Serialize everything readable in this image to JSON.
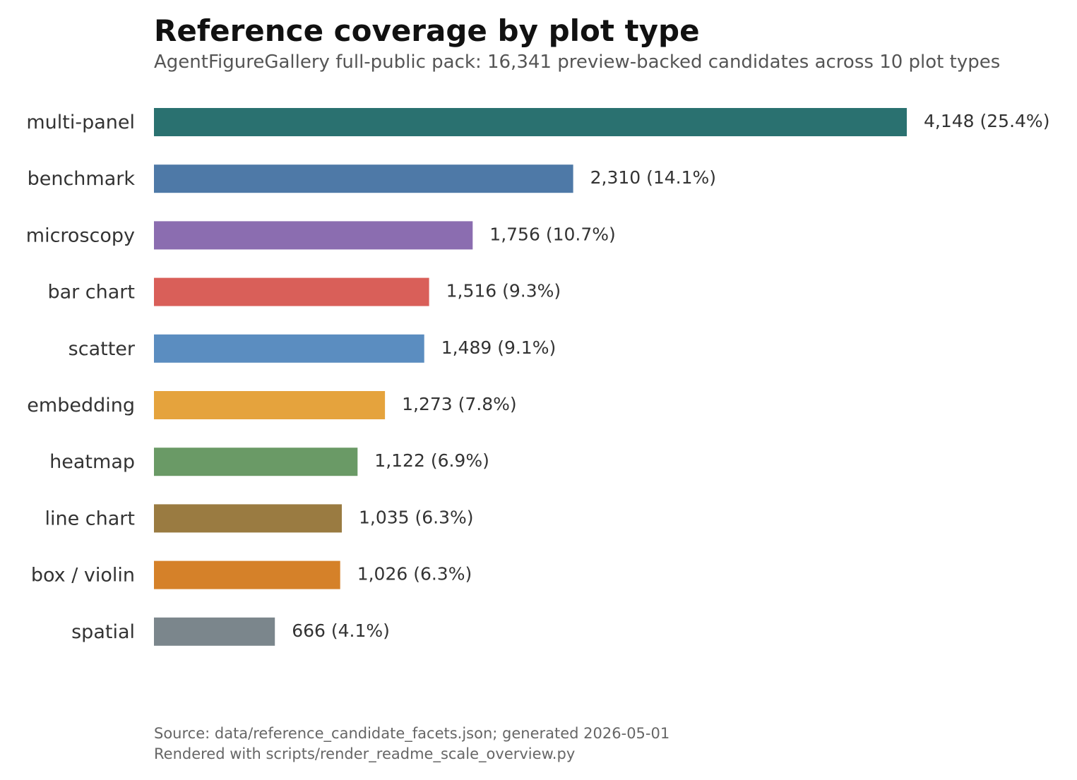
{
  "chart_data": {
    "type": "bar",
    "orientation": "horizontal",
    "title": "Reference coverage by plot type",
    "subtitle": "AgentFigureGallery full-public pack: 16,341 preview-backed candidates across 10 plot types",
    "categories": [
      "multi-panel",
      "benchmark",
      "microscopy",
      "bar chart",
      "scatter",
      "embedding",
      "heatmap",
      "line chart",
      "box / violin",
      "spatial"
    ],
    "values": [
      4148,
      2310,
      1756,
      1516,
      1489,
      1273,
      1122,
      1035,
      1026,
      666
    ],
    "data_labels": [
      "4,148 (25.4%)",
      "2,310 (14.1%)",
      "1,756 (10.7%)",
      "1,516 (9.3%)",
      "1,489 (9.1%)",
      "1,273 (7.8%)",
      "1,122 (6.9%)",
      "1,035 (6.3%)",
      "1,026 (6.3%)",
      "666 (4.1%)"
    ],
    "colors": [
      "#2a7170",
      "#4e79a7",
      "#8b6db0",
      "#d95f59",
      "#5b8dc0",
      "#e5a33d",
      "#6a9a66",
      "#9a7b41",
      "#d58129",
      "#7b868c"
    ],
    "xlabel": "",
    "ylabel": "",
    "xlim": [
      0,
      4148
    ],
    "grid": false,
    "legend": "none"
  },
  "footer": {
    "source": "Source: data/reference_candidate_facets.json; generated 2026-05-01",
    "rendered": "Rendered with scripts/render_readme_scale_overview.py"
  }
}
